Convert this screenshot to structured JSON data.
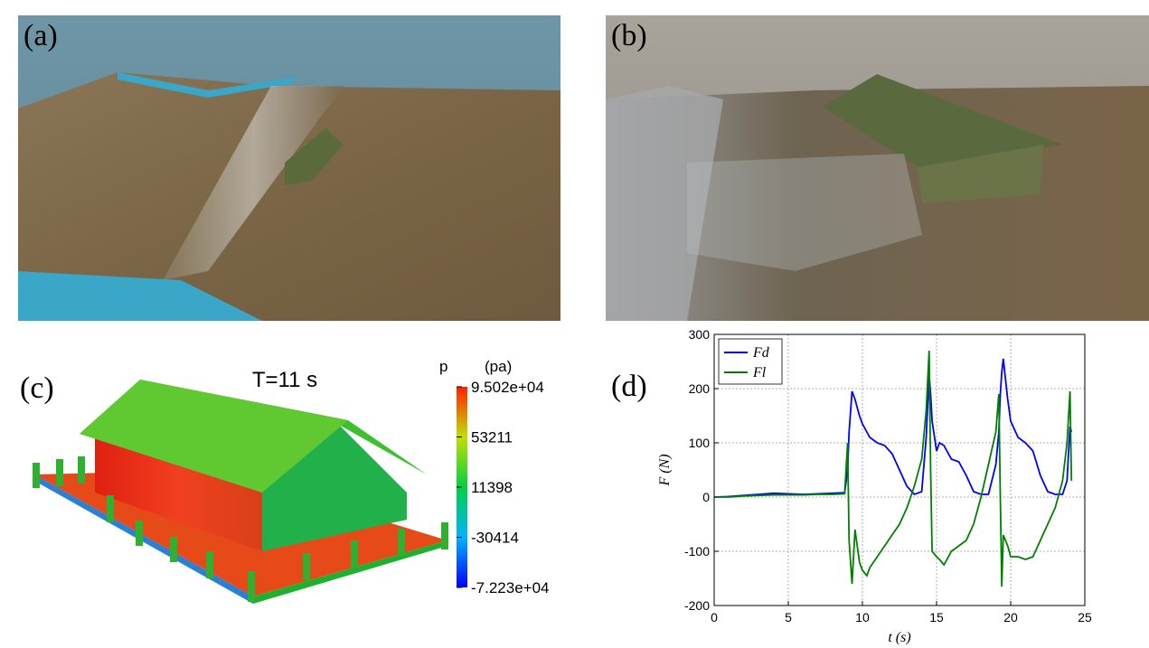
{
  "panels": [
    {
      "label": "(a)"
    },
    {
      "label": "(b)"
    },
    {
      "label": "(c)",
      "title": "T=11 s",
      "colorbar": {
        "name": "p",
        "unit": "(pa)",
        "clim": [
          -72230,
          95020
        ],
        "ticks": [
          {
            "value": 95020,
            "label": "9.502e+04"
          },
          53211,
          11398,
          -30414,
          {
            "value": -72230,
            "label": "-7.223e+04"
          }
        ]
      }
    },
    {
      "label": "(d)"
    }
  ],
  "chart_data": {
    "type": "line",
    "xlabel": "t (s)",
    "ylabel": "F (N)",
    "x": [
      0,
      1,
      2,
      3,
      4,
      5,
      6,
      7,
      8,
      8.8,
      9.0,
      9.1,
      9.3,
      9.5,
      9.8,
      10,
      10.3,
      10.5,
      11,
      11.5,
      12,
      12.5,
      13,
      13.5,
      14,
      14.3,
      14.5,
      14.6,
      14.7,
      15,
      15.2,
      15.5,
      16,
      16.5,
      17,
      17.5,
      18,
      18.5,
      19,
      19.2,
      19.3,
      19.4,
      19.5,
      19.8,
      20,
      20.5,
      21,
      21.5,
      22,
      22.5,
      23,
      23.5,
      23.8,
      24,
      24.1
    ],
    "series": [
      {
        "name": "Fd",
        "color": "#0000ff",
        "values": [
          0,
          1,
          3,
          5,
          7,
          6,
          5,
          6,
          7,
          8,
          50,
          120,
          195,
          180,
          150,
          135,
          120,
          110,
          100,
          95,
          80,
          50,
          20,
          5,
          10,
          110,
          225,
          190,
          140,
          85,
          100,
          95,
          70,
          65,
          40,
          10,
          5,
          5,
          60,
          120,
          190,
          230,
          255,
          180,
          140,
          110,
          100,
          85,
          40,
          10,
          5,
          5,
          30,
          130,
          120
        ]
      },
      {
        "name": "Fl",
        "color": "#008000",
        "values": [
          0,
          0,
          2,
          3,
          4,
          4,
          4,
          5,
          5,
          6,
          100,
          -80,
          -160,
          -60,
          -120,
          -135,
          -145,
          -130,
          -110,
          -90,
          -70,
          -50,
          -20,
          20,
          70,
          160,
          270,
          50,
          -100,
          -110,
          -115,
          -125,
          -100,
          -90,
          -80,
          -50,
          0,
          60,
          120,
          190,
          0,
          -165,
          -70,
          -90,
          -110,
          -110,
          -115,
          -110,
          -80,
          -50,
          -20,
          30,
          100,
          195,
          30
        ]
      }
    ],
    "xlim": [
      0,
      25
    ],
    "xticks": [
      0,
      5,
      10,
      15,
      20,
      25
    ],
    "ylim": [
      -200,
      300
    ],
    "yticks": [
      -200,
      -100,
      0,
      100,
      200,
      300
    ],
    "grid": true,
    "legend": "upper left"
  }
}
